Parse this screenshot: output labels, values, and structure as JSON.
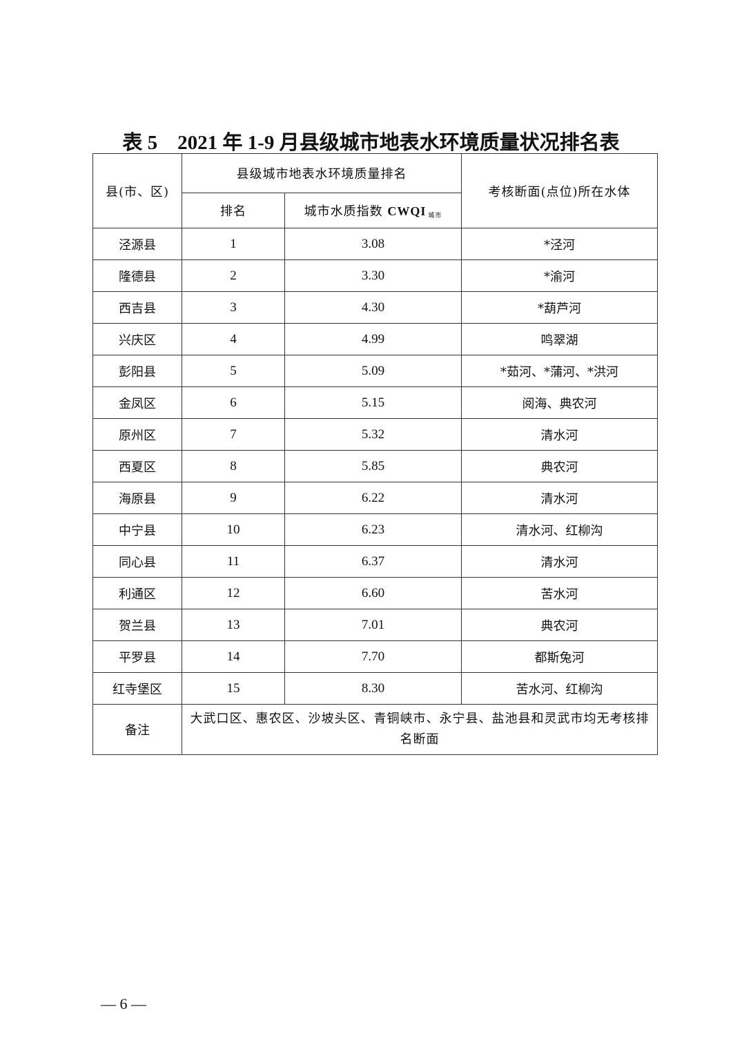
{
  "title": "表 5　2021 年 1-9 月县级城市地表水环境质量状况排名表",
  "headers": {
    "county": "县(市、区)",
    "group": "县级城市地表水环境质量排名",
    "rank": "排名",
    "index_label": "城市水质指数",
    "index_abbr": "CWQI",
    "index_subscript": "城市",
    "water_body": "考核断面(点位)所在水体"
  },
  "rows": [
    {
      "county": "泾源县",
      "rank": "1",
      "cwqi": "3.08",
      "water": "*泾河"
    },
    {
      "county": "隆德县",
      "rank": "2",
      "cwqi": "3.30",
      "water": "*渝河"
    },
    {
      "county": "西吉县",
      "rank": "3",
      "cwqi": "4.30",
      "water": "*葫芦河"
    },
    {
      "county": "兴庆区",
      "rank": "4",
      "cwqi": "4.99",
      "water": "鸣翠湖"
    },
    {
      "county": "彭阳县",
      "rank": "5",
      "cwqi": "5.09",
      "water": "*茹河、*蒲河、*洪河"
    },
    {
      "county": "金凤区",
      "rank": "6",
      "cwqi": "5.15",
      "water": "阅海、典农河"
    },
    {
      "county": "原州区",
      "rank": "7",
      "cwqi": "5.32",
      "water": "清水河"
    },
    {
      "county": "西夏区",
      "rank": "8",
      "cwqi": "5.85",
      "water": "典农河"
    },
    {
      "county": "海原县",
      "rank": "9",
      "cwqi": "6.22",
      "water": "清水河"
    },
    {
      "county": "中宁县",
      "rank": "10",
      "cwqi": "6.23",
      "water": "清水河、红柳沟"
    },
    {
      "county": "同心县",
      "rank": "11",
      "cwqi": "6.37",
      "water": "清水河"
    },
    {
      "county": "利通区",
      "rank": "12",
      "cwqi": "6.60",
      "water": "苦水河"
    },
    {
      "county": "贺兰县",
      "rank": "13",
      "cwqi": "7.01",
      "water": "典农河"
    },
    {
      "county": "平罗县",
      "rank": "14",
      "cwqi": "7.70",
      "water": "都斯兔河"
    },
    {
      "county": "红寺堡区",
      "rank": "15",
      "cwqi": "8.30",
      "water": "苦水河、红柳沟"
    }
  ],
  "note": {
    "label": "备注",
    "text": "大武口区、惠农区、沙坡头区、青铜峡市、永宁县、盐池县和灵武市均无考核排名断面"
  },
  "page_number": "— 6 —"
}
